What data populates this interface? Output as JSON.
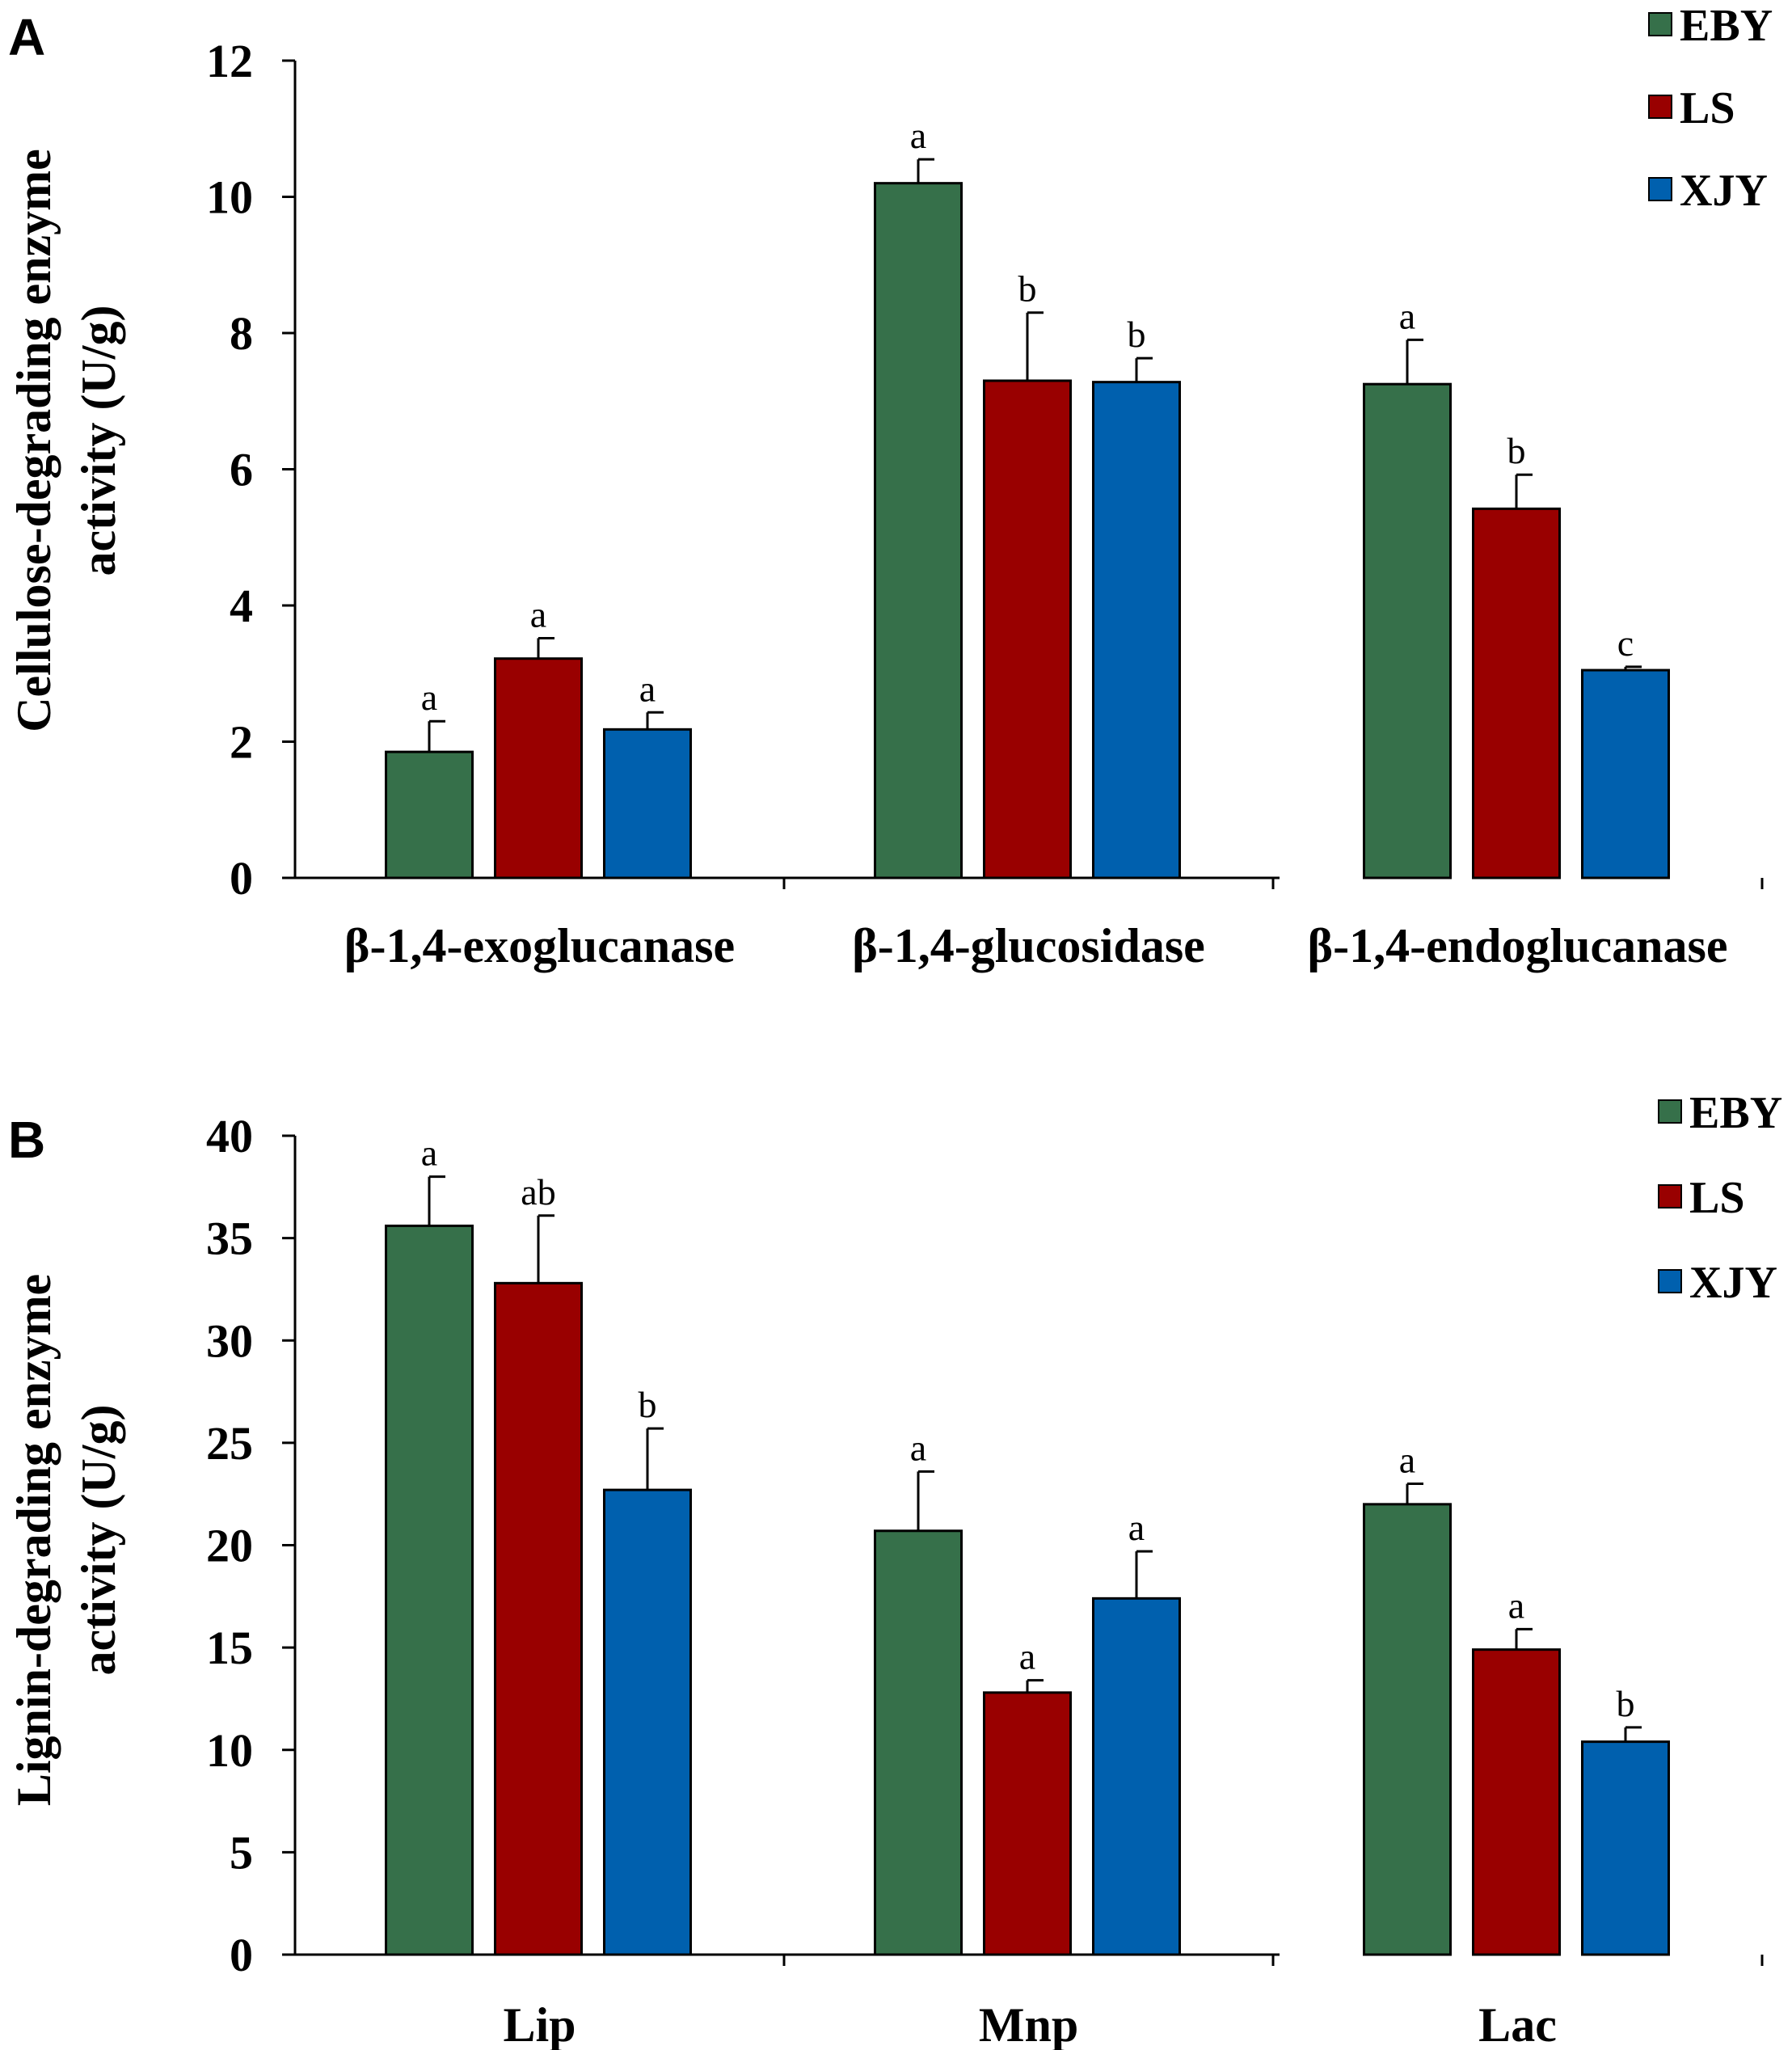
{
  "chart_data": [
    {
      "panel": "A",
      "type": "bar",
      "ylabel_lines": [
        "Cellulose-degrading enzyme",
        "activity (U/g)"
      ],
      "xlabel": "",
      "ylim": [
        0,
        12
      ],
      "yticks": [
        0,
        2,
        4,
        6,
        8,
        10,
        12
      ],
      "categories": [
        "β-1,4-exoglucanase",
        "β-1,4-glucosidase",
        "β-1,4-endoglucanase"
      ],
      "legend_position": "top-right",
      "series": [
        {
          "name": "EBY",
          "color": "#36704A",
          "values": [
            1.85,
            10.2,
            7.25
          ],
          "errors": [
            0.45,
            0.35,
            0.65
          ],
          "letters": [
            "a",
            "a",
            "a"
          ]
        },
        {
          "name": "LS",
          "color": "#990000",
          "values": [
            3.22,
            7.3,
            5.42
          ],
          "errors": [
            0.3,
            1.0,
            0.5
          ],
          "letters": [
            "a",
            "b",
            "b"
          ]
        },
        {
          "name": "XJY",
          "color": "#0060AE",
          "values": [
            2.18,
            7.28,
            3.05
          ],
          "errors": [
            0.25,
            0.35,
            0.05
          ],
          "letters": [
            "a",
            "b",
            "c"
          ]
        }
      ]
    },
    {
      "panel": "B",
      "type": "bar",
      "ylabel_lines": [
        "Lignin-degrading enzyme",
        "activity (U/g)"
      ],
      "xlabel": "",
      "ylim": [
        0,
        40
      ],
      "yticks": [
        0,
        5,
        10,
        15,
        20,
        25,
        30,
        35,
        40
      ],
      "categories": [
        "Lip",
        "Mnp",
        "Lac"
      ],
      "legend_position": "top-right",
      "series": [
        {
          "name": "EBY",
          "color": "#36704A",
          "values": [
            35.6,
            20.7,
            22.0
          ],
          "errors": [
            2.4,
            2.9,
            1.0
          ],
          "letters": [
            "a",
            "a",
            "a"
          ]
        },
        {
          "name": "LS",
          "color": "#990000",
          "values": [
            32.8,
            12.8,
            14.9
          ],
          "errors": [
            3.3,
            0.6,
            1.0
          ],
          "letters": [
            "ab",
            "a",
            "a"
          ]
        },
        {
          "name": "XJY",
          "color": "#0060AE",
          "values": [
            22.7,
            17.4,
            10.4
          ],
          "errors": [
            3.0,
            2.3,
            0.7
          ],
          "letters": [
            "b",
            "a",
            "b"
          ]
        }
      ]
    }
  ]
}
